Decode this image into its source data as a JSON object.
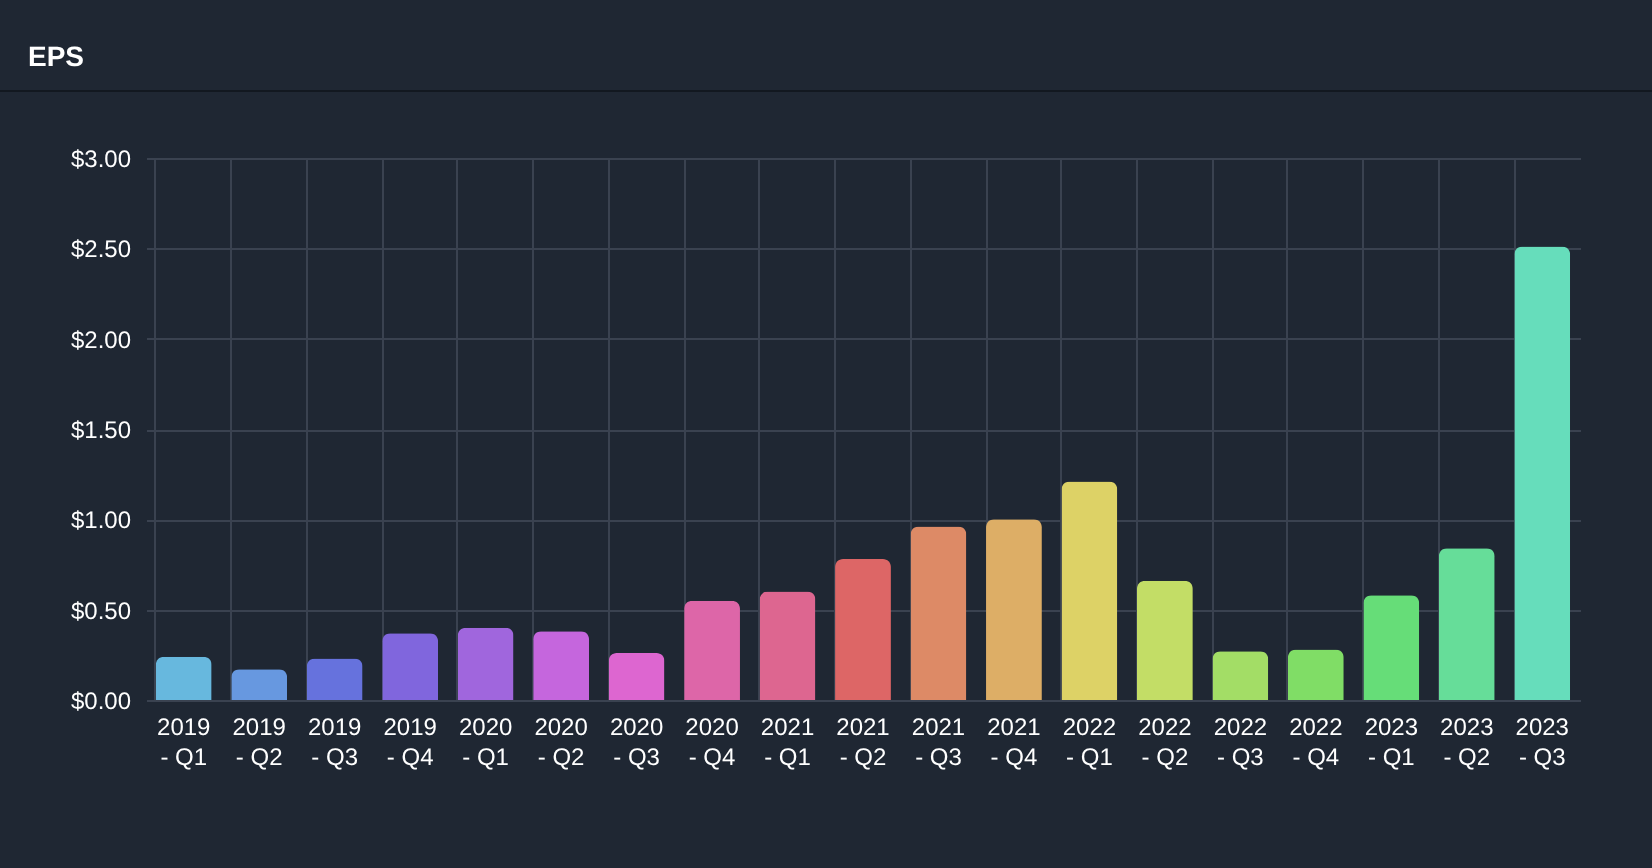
{
  "chart_data": {
    "type": "bar",
    "title": "EPS",
    "categories": [
      "2019 - Q1",
      "2019 - Q2",
      "2019 - Q3",
      "2019 - Q4",
      "2020 - Q1",
      "2020 - Q2",
      "2020 - Q3",
      "2020 - Q4",
      "2021 - Q1",
      "2021 - Q2",
      "2021 - Q3",
      "2021 - Q4",
      "2022 - Q1",
      "2022 - Q2",
      "2022 - Q3",
      "2022 - Q4",
      "2023 - Q1",
      "2023 - Q2",
      "2023 - Q3"
    ],
    "values": [
      0.24,
      0.17,
      0.23,
      0.37,
      0.4,
      0.38,
      0.26,
      0.55,
      0.6,
      0.78,
      0.96,
      1.0,
      1.21,
      0.66,
      0.27,
      0.28,
      0.58,
      0.84,
      2.51
    ],
    "colors": [
      "#67b8de",
      "#6798e0",
      "#6672dd",
      "#8066dd",
      "#a066dd",
      "#c566dd",
      "#dd66d0",
      "#dd66a8",
      "#dd6690",
      "#dd6666",
      "#dd8a66",
      "#ddae66",
      "#ddd266",
      "#c3dd66",
      "#a3dd66",
      "#80dd66",
      "#66dd78",
      "#66dd99",
      "#66ddbb"
    ],
    "ylim": [
      0,
      3
    ],
    "yticks": [
      {
        "value": 0,
        "label": "$0.00"
      },
      {
        "value": 0.5,
        "label": "$0.50"
      },
      {
        "value": 1,
        "label": "$1.00"
      },
      {
        "value": 1.5,
        "label": "$1.50"
      },
      {
        "value": 2,
        "label": "$2.00"
      },
      {
        "value": 2.5,
        "label": "$2.50"
      },
      {
        "value": 3,
        "label": "$3.00"
      }
    ],
    "grid": true
  }
}
